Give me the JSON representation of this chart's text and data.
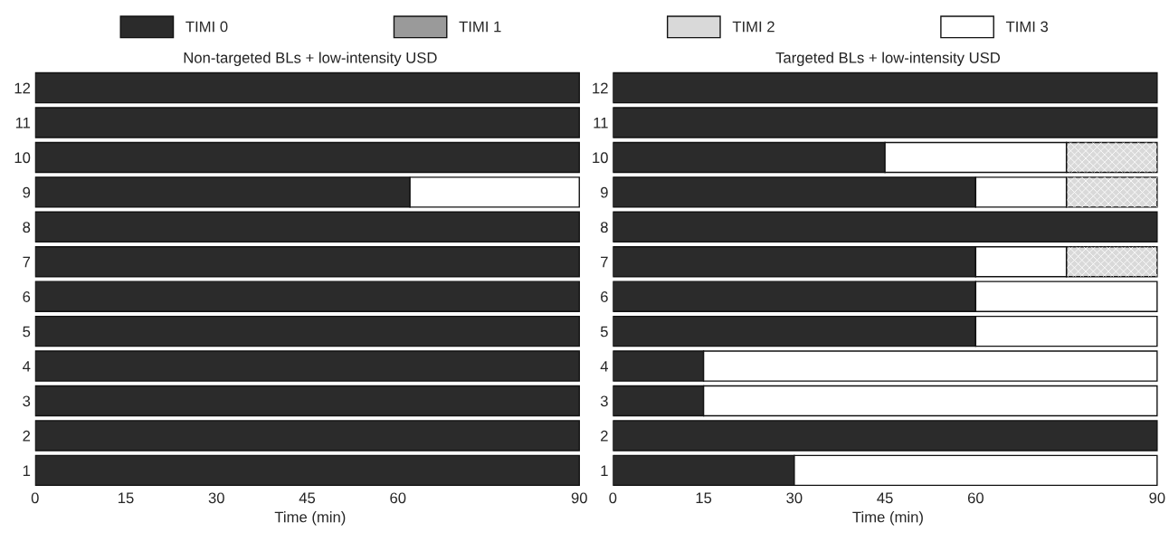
{
  "chart_data": [
    {
      "type": "bar",
      "orientation": "horizontal",
      "title": "Non-targeted BLs + low-intensity USD",
      "xlabel": "Time (min)",
      "legend": "top",
      "stacked": true,
      "grid": false,
      "categories": [
        "12",
        "11",
        "10",
        "9",
        "8",
        "7",
        "6",
        "5",
        "4",
        "3",
        "2",
        "1"
      ],
      "xlim": [
        0,
        91
      ],
      "xticks": [
        0,
        15,
        30,
        45,
        60,
        90
      ],
      "series": [
        {
          "name": "TIMI 0",
          "color": "#2b2b2b",
          "values": [
            90,
            90,
            90,
            62,
            90,
            90,
            90,
            90,
            90,
            90,
            90,
            90
          ]
        },
        {
          "name": "TIMI 1",
          "color": "#9a9a9a",
          "values": [
            null,
            null,
            null,
            null,
            null,
            null,
            null,
            null,
            null,
            null,
            null,
            null
          ]
        },
        {
          "name": "TIMI 2",
          "color": "#d9d9d9",
          "values": [
            null,
            null,
            null,
            null,
            null,
            null,
            null,
            null,
            null,
            null,
            null,
            null
          ]
        },
        {
          "name": "TIMI 3",
          "color": "#ffffff",
          "values": [
            null,
            null,
            null,
            28,
            null,
            null,
            null,
            null,
            null,
            null,
            null,
            null
          ]
        }
      ]
    },
    {
      "type": "bar",
      "orientation": "horizontal",
      "title": "Targeted BLs + low-intensity USD",
      "xlabel": "Time (min)",
      "stacked": true,
      "grid": false,
      "categories": [
        "12",
        "11",
        "10",
        "9",
        "8",
        "7",
        "6",
        "5",
        "4",
        "3",
        "2",
        "1"
      ],
      "xlim": [
        0,
        91
      ],
      "xticks": [
        0,
        15,
        30,
        45,
        60,
        90
      ],
      "series": [
        {
          "color": "#2b2b2b",
          "values": [
            90,
            90,
            45,
            60,
            90,
            60,
            60,
            60,
            15,
            15,
            90,
            30
          ]
        },
        {
          "color": "#9a9a9a",
          "values": [
            null,
            null,
            null,
            null,
            null,
            null,
            null,
            null,
            null,
            null,
            null,
            null
          ]
        },
        {
          "color": "#d9d9d9",
          "base": [
            null,
            null,
            75,
            75,
            null,
            75,
            null,
            null,
            null,
            null,
            null,
            null
          ],
          "values": [
            null,
            null,
            15,
            15,
            null,
            15,
            null,
            null,
            null,
            null,
            null,
            null
          ]
        },
        {
          "color": "#ffffff",
          "values": [
            null,
            null,
            30,
            15,
            null,
            15,
            30,
            30,
            75,
            75,
            null,
            60
          ]
        }
      ]
    }
  ]
}
